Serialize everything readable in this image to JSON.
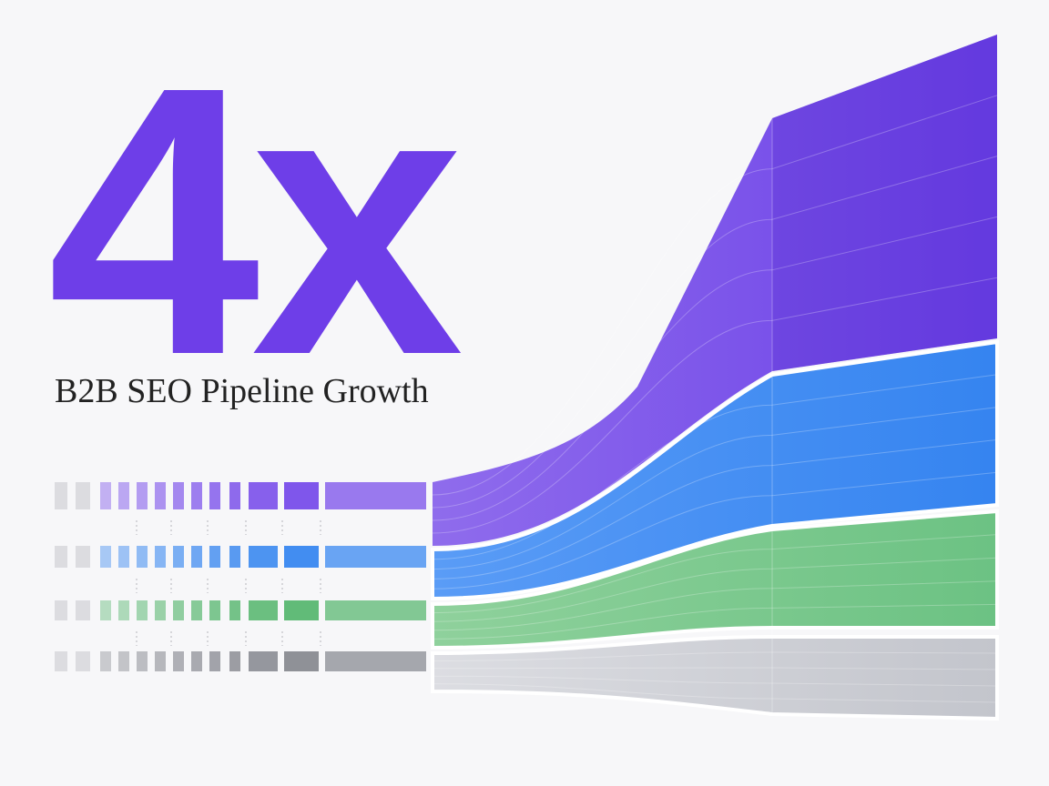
{
  "headline": "4x",
  "subtitle": "B2B SEO Pipeline Growth"
}
